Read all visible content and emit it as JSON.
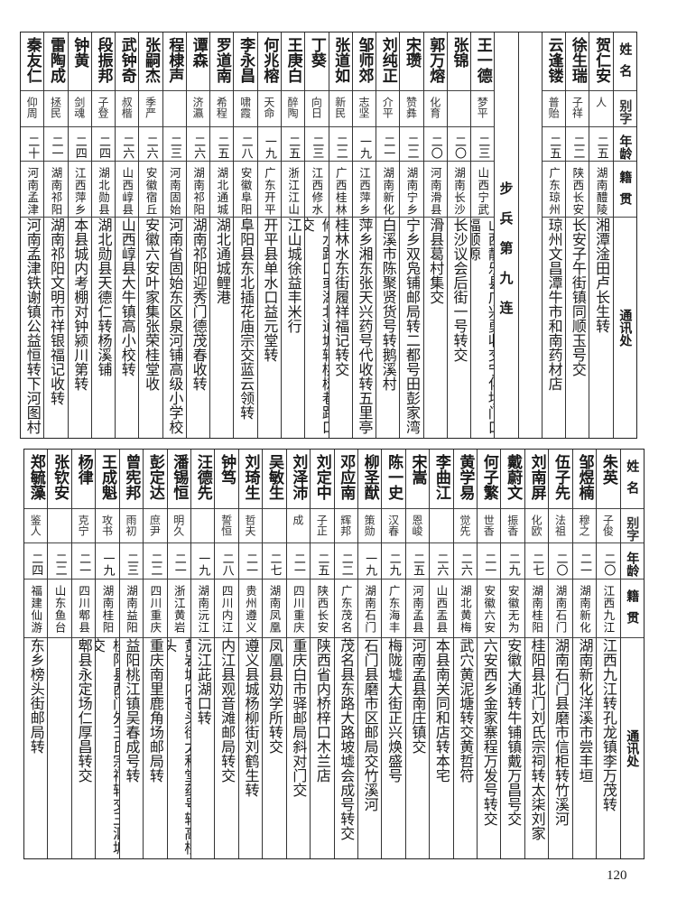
{
  "header": {
    "name": "姓名",
    "alias": "别字",
    "age": "年龄",
    "origin": "籍贯",
    "address": "通讯处"
  },
  "top_table": {
    "columns": [
      {
        "name": "贺仁安",
        "alias": "人",
        "age": "二五",
        "origin": "湖南醴陵",
        "address": "湘潭淦田卢长生转"
      },
      {
        "name": "徐生瑞",
        "alias": "子祥",
        "age": "二二",
        "origin": "陕西长安",
        "address": "长安子午街镇同顺玉号交"
      },
      {
        "name": "云逢镂",
        "alias": "普贻",
        "age": "二五",
        "origin": "广东琼州",
        "address": "琼州文昌潭牛市和南药材店"
      },
      {
        "type": "blank"
      },
      {
        "type": "section",
        "title": "步兵第九连"
      },
      {
        "name": "王一德",
        "alias": "梦平",
        "age": "二三",
        "origin": "山西宁武",
        "address": "山西静乐县广兴勇收交宁化坝门口福顺源"
      },
      {
        "name": "张锦",
        "alias": "",
        "age": "二〇",
        "origin": "湖南长沙",
        "address": "长沙议会后街一号转交"
      },
      {
        "name": "郭万熔",
        "alias": "化育",
        "age": "二〇",
        "origin": "河南滑县",
        "address": "滑县葛村集交"
      },
      {
        "name": "宋瓒",
        "alias": "赞彝",
        "age": "二二",
        "origin": "湖南宁乡",
        "address": "宁乡双凫铺邮局转二都号田彭家湾"
      },
      {
        "name": "刘纯正",
        "alias": "介平",
        "age": "二一",
        "origin": "湖南新化",
        "address": "白溪市陈聚贤货号转鹅溪村"
      },
      {
        "name": "邹师郊",
        "alias": "志坚",
        "age": "一九",
        "origin": "江西萍乡",
        "address": "萍乡湘东张天兴药号代收转五里亭"
      },
      {
        "name": "张道如",
        "alias": "新民",
        "age": "二二",
        "origin": "广西桂林",
        "address": "桂林水东街履祥福记转交"
      },
      {
        "name": "丁葵",
        "alias": "向日",
        "age": "二三",
        "origin": "江西修水",
        "address": "修水路口或湖北通城转桃树巷路口交"
      },
      {
        "name": "王庚白",
        "alias": "醉陶",
        "age": "二五",
        "origin": "浙江江山",
        "address": "江山城徐益丰米行"
      },
      {
        "name": "何兆榕",
        "alias": "天命",
        "age": "一九",
        "origin": "广东开平",
        "address": "开平县单水口益元堂转"
      },
      {
        "name": "李永昌",
        "alias": "啸霞",
        "age": "二八",
        "origin": "安徽阜阳",
        "address": "阜阳县东北插花庙宗交蓝云领转"
      },
      {
        "name": "罗道南",
        "alias": "希程",
        "age": "二五",
        "origin": "湖北通城",
        "address": "湖北通城鲤港"
      },
      {
        "name": "谭森",
        "alias": "济瀛",
        "age": "二六",
        "origin": "湖南祁阳",
        "address": "湖南祁阳迎秀门德茂春收转"
      },
      {
        "name": "程棣声",
        "alias": "",
        "age": "二三",
        "origin": "河南固始",
        "address": "河南省固始东区泉河铺高级小学校"
      },
      {
        "name": "张嗣杰",
        "alias": "季严",
        "age": "二六",
        "origin": "安徽宿丘",
        "address": "安徽六安叶家集张荣桂堂收"
      },
      {
        "name": "武钟奇",
        "alias": "叔楷",
        "age": "二六",
        "origin": "山西崞县",
        "address": "山西崞县大牛镇高小校转"
      },
      {
        "name": "段振邦",
        "alias": "子登",
        "age": "二四",
        "origin": "湖北勋县",
        "address": "湖北勋县天德仁转杨溪铺"
      },
      {
        "name": "钟黄",
        "alias": "剑魂",
        "age": "二四",
        "origin": "江西萍乡",
        "address": "本县城内考棚对钟颍川第转"
      },
      {
        "name": "雷陶成",
        "alias": "拯民",
        "age": "二一",
        "origin": "湖南祁阳",
        "address": "湖南祁阳文明市祥银福记收转"
      },
      {
        "name": "秦友仁",
        "alias": "仰周",
        "age": "二十",
        "origin": "河南孟津",
        "address": "河南孟津铁谢镇公益恒转下河图村"
      }
    ]
  },
  "bottom_table": {
    "columns": [
      {
        "name": "朱英",
        "alias": "子俊",
        "age": "二〇",
        "origin": "江西九江",
        "address": "江西九江转孔龙镇李万茂转"
      },
      {
        "name": "邹煜楠",
        "alias": "穆之",
        "age": "二一",
        "origin": "湖南新化",
        "address": "湖南新化洋溪市尝丰垣"
      },
      {
        "name": "伍子先",
        "alias": "法祖",
        "age": "二〇",
        "origin": "湖南石门",
        "address": "湖南石门县磨市信柜转竹溪河"
      },
      {
        "name": "刘南屏",
        "alias": "化欧",
        "age": "二七",
        "origin": "湖南桂阳",
        "address": "桂阳县北门刘氏宗祠转太柒刘家"
      },
      {
        "name": "戴蔚文",
        "alias": "振香",
        "age": "二九",
        "origin": "安徽无为",
        "address": "安徽大通转牛铺镇戴万昌号交"
      },
      {
        "name": "何子繁",
        "alias": "世香",
        "age": "二一",
        "origin": "安徽六安",
        "address": "六安西乡金家寨程万发号转交"
      },
      {
        "name": "黄学易",
        "alias": "觉先",
        "age": "二六",
        "origin": "湖北黄梅",
        "address": "武穴黄泥塘转交黄哲符"
      },
      {
        "name": "李曲江",
        "alias": "",
        "age": "二六",
        "origin": "山西盂县",
        "address": "本县南关同和店转本宅"
      },
      {
        "name": "宋嵩",
        "alias": "恩峻",
        "age": "二五",
        "origin": "河南孟县",
        "address": "河南孟县南庄镇交"
      },
      {
        "name": "陈一史",
        "alias": "汉春",
        "age": "二九",
        "origin": "广东海丰",
        "address": "梅陇墟大街正兴焕盛号"
      },
      {
        "name": "柳圣猷",
        "alias": "策勋",
        "age": "一九",
        "origin": "湖南石门",
        "address": "石门县磨市区邮局交竹溪河"
      },
      {
        "name": "邓应南",
        "alias": "辉邦",
        "age": "二二",
        "origin": "广东茂名",
        "address": "茂名县东路大路坡墟会成号转交"
      },
      {
        "name": "刘定中",
        "alias": "子正",
        "age": "二五",
        "origin": "陕西长安",
        "address": "陕西省内桥梓口木兰店"
      },
      {
        "name": "刘泽沛",
        "alias": "成",
        "age": "二一",
        "origin": "四川重庆",
        "address": "重庆白市驿邮局斜对门交"
      },
      {
        "name": "吴敏生",
        "alias": "",
        "age": "二七",
        "origin": "湖南凤凰",
        "address": "凤凰县劝学所转交"
      },
      {
        "name": "刘琦生",
        "alias": "哲夫",
        "age": "二一",
        "origin": "贵州遵义",
        "address": "遵义县城杨柳街刘鹤生转"
      },
      {
        "name": "钟笃",
        "alias": "誓恒",
        "age": "二八",
        "origin": "四川内江",
        "address": "内江县观音滩邮局转交"
      },
      {
        "name": "汪德先",
        "alias": "",
        "age": "一九",
        "origin": "湖南沅江",
        "address": "沅江茈湖口转"
      },
      {
        "name": "潘锡恒",
        "alias": "明久",
        "age": "二一",
        "origin": "浙江黄岩",
        "address": "黄岩城内苍头街太和堂药号转高桥头"
      },
      {
        "name": "彭定达",
        "alias": "庶尹",
        "age": "二二",
        "origin": "四川重庆",
        "address": "重庆南里鹿角场邮局转"
      },
      {
        "name": "曾宪邦",
        "alias": "雨初",
        "age": "二三",
        "origin": "湖南益阳",
        "address": "益阳桃江镇吴春成号转"
      },
      {
        "name": "王成魁",
        "alias": "攻书",
        "age": "一九",
        "origin": "湖南桂阳",
        "address": "桂阳县西门外王氏宗祠转交王泗塘交"
      },
      {
        "name": "杨律",
        "alias": "克宁",
        "age": "二一",
        "origin": "四川郫县",
        "address": "郫县永定场仁厚昌转交"
      },
      {
        "name": "张钦安",
        "alias": "",
        "age": "二二",
        "origin": "山东鱼台",
        "address": ""
      },
      {
        "name": "郑毓藻",
        "alias": "鉴人",
        "age": "二四",
        "origin": "福建仙游",
        "address": "东乡榜头街邮局转"
      }
    ]
  },
  "page_number": "120"
}
